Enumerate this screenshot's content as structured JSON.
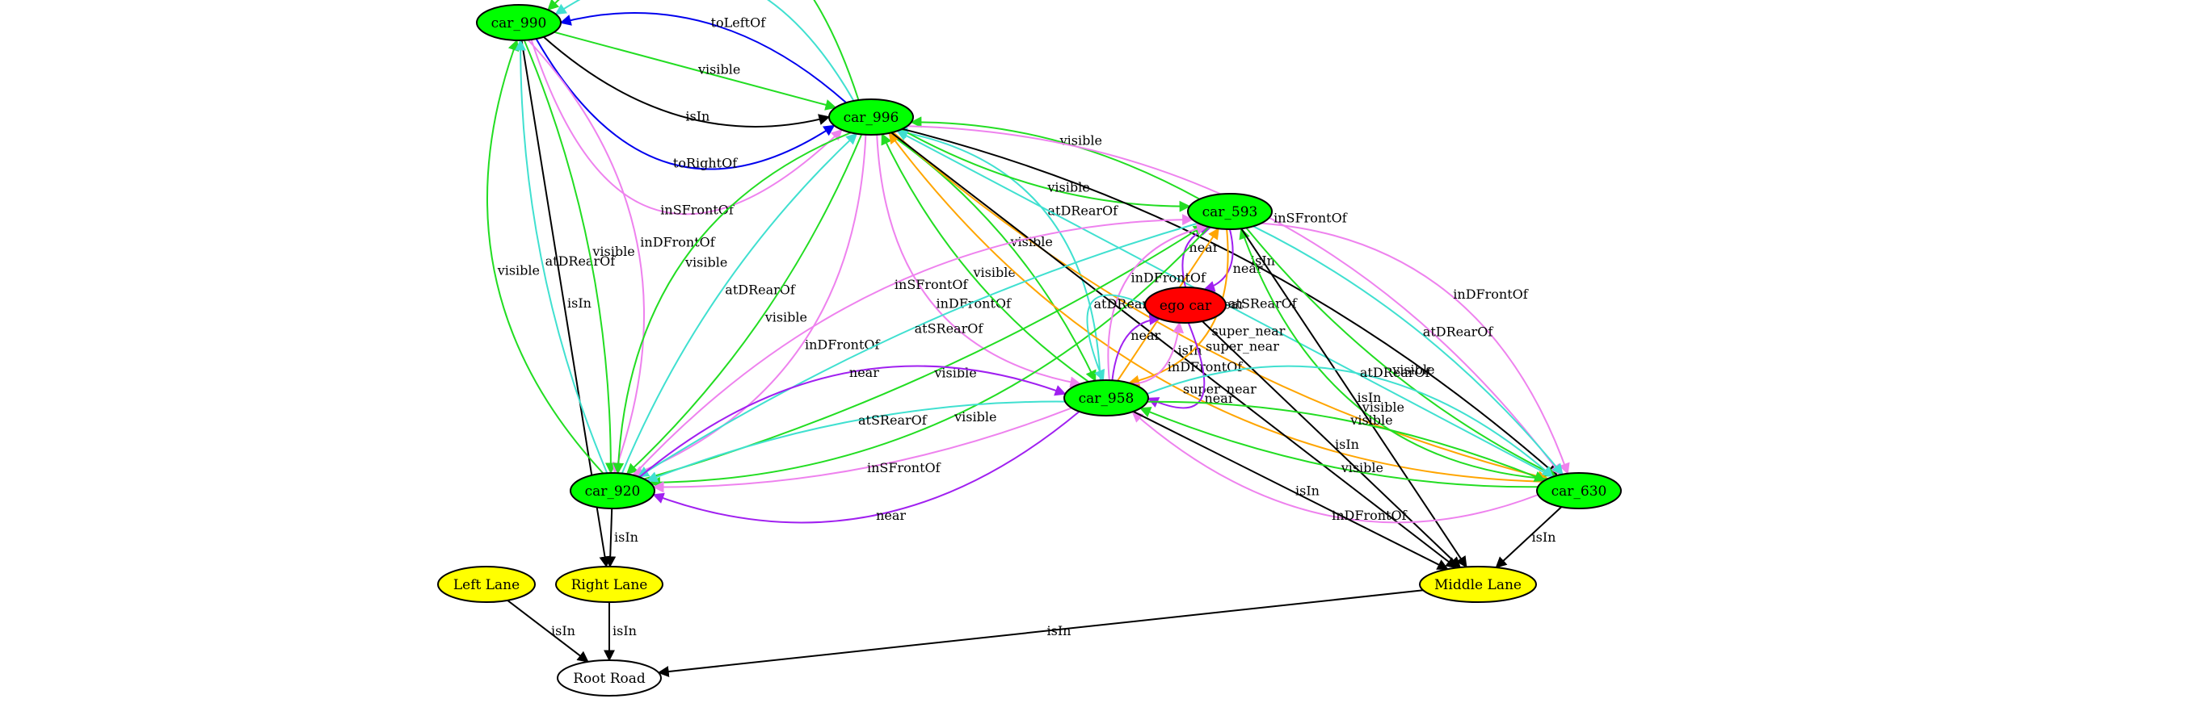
{
  "colors": {
    "vehicle": "#00ff00",
    "ego": "#ff0000",
    "lane": "#ffff00",
    "road": "#ffffff",
    "visible": "#22dd22",
    "atSRearOf": "#40e0d0",
    "atDRearOf": "#40e0d0",
    "toLeftOf": "#0000ee",
    "toRightOf": "#0000ee",
    "inSFrontOf": "#ee82ee",
    "inDFrontOf": "#ee82ee",
    "isIn": "#000000",
    "near": "#a020f0",
    "super_near": "#ffa500"
  },
  "nodes": [
    {
      "id": "car_990",
      "label": "car_990",
      "kind": "vehicle"
    },
    {
      "id": "car_996",
      "label": "car_996",
      "kind": "vehicle"
    },
    {
      "id": "car_593",
      "label": "car_593",
      "kind": "vehicle"
    },
    {
      "id": "ego_car",
      "label": "ego car",
      "kind": "ego"
    },
    {
      "id": "car_958",
      "label": "car_958",
      "kind": "vehicle"
    },
    {
      "id": "car_920",
      "label": "car_920",
      "kind": "vehicle"
    },
    {
      "id": "car_630",
      "label": "car_630",
      "kind": "vehicle"
    },
    {
      "id": "left_lane",
      "label": "Left Lane",
      "kind": "lane"
    },
    {
      "id": "right_lane",
      "label": "Right Lane",
      "kind": "lane"
    },
    {
      "id": "middle_lane",
      "label": "Middle Lane",
      "kind": "lane"
    },
    {
      "id": "root_road",
      "label": "Root Road",
      "kind": "road"
    }
  ],
  "edges": [
    {
      "from": "car_996",
      "to": "car_990",
      "label": "visible",
      "rel": "visible"
    },
    {
      "from": "car_996",
      "to": "car_990",
      "label": "atSRearOf",
      "rel": "atSRearOf"
    },
    {
      "from": "car_996",
      "to": "car_990",
      "label": "toLeftOf",
      "rel": "toLeftOf"
    },
    {
      "from": "car_990",
      "to": "car_996",
      "label": "visible",
      "rel": "visible"
    },
    {
      "from": "car_990",
      "to": "car_996",
      "label": "isIn",
      "rel": "isIn"
    },
    {
      "from": "car_990",
      "to": "car_996",
      "label": "toRightOf",
      "rel": "toRightOf"
    },
    {
      "from": "car_990",
      "to": "car_996",
      "label": "inSFrontOf",
      "rel": "inSFrontOf"
    },
    {
      "from": "car_990",
      "to": "right_lane",
      "label": "isIn",
      "rel": "isIn"
    },
    {
      "from": "car_920",
      "to": "car_990",
      "label": "visible",
      "rel": "visible"
    },
    {
      "from": "car_920",
      "to": "car_990",
      "label": "atDRearOf",
      "rel": "atDRearOf"
    },
    {
      "from": "car_990",
      "to": "car_920",
      "label": "visible",
      "rel": "visible"
    },
    {
      "from": "car_990",
      "to": "car_920",
      "label": "inDFrontOf",
      "rel": "inDFrontOf"
    },
    {
      "from": "car_996",
      "to": "car_920",
      "label": "visible",
      "rel": "visible"
    },
    {
      "from": "car_920",
      "to": "car_996",
      "label": "atDRearOf",
      "rel": "atDRearOf"
    },
    {
      "from": "car_996",
      "to": "car_920",
      "label": "visible",
      "rel": "visible"
    },
    {
      "from": "car_996",
      "to": "car_920",
      "label": "inDFrontOf",
      "rel": "inDFrontOf"
    },
    {
      "from": "car_996",
      "to": "car_958",
      "label": "inDFrontOf",
      "rel": "inDFrontOf"
    },
    {
      "from": "car_958",
      "to": "car_996",
      "label": "visible",
      "rel": "visible"
    },
    {
      "from": "car_996",
      "to": "car_958",
      "label": "visible",
      "rel": "visible"
    },
    {
      "from": "car_958",
      "to": "car_996",
      "label": "atDRearOf",
      "rel": "atDRearOf"
    },
    {
      "from": "car_996",
      "to": "car_593",
      "label": "visible",
      "rel": "visible"
    },
    {
      "from": "car_593",
      "to": "car_996",
      "label": "visible",
      "rel": "visible"
    },
    {
      "from": "car_630",
      "to": "car_996",
      "label": "super_near",
      "rel": "super_near"
    },
    {
      "from": "car_996",
      "to": "car_630",
      "label": "super_near",
      "rel": "super_near"
    },
    {
      "from": "car_630",
      "to": "car_996",
      "label": "atSRearOf",
      "rel": "atSRearOf"
    },
    {
      "from": "car_996",
      "to": "car_630",
      "label": "isIn",
      "rel": "isIn"
    },
    {
      "from": "car_996",
      "to": "car_630",
      "label": "inSFrontOf",
      "rel": "inSFrontOf"
    },
    {
      "from": "car_996",
      "to": "middle_lane",
      "label": "isIn",
      "rel": "isIn"
    },
    {
      "from": "car_593",
      "to": "ego_car",
      "label": "near",
      "rel": "near"
    },
    {
      "from": "ego_car",
      "to": "car_593",
      "label": "near",
      "rel": "near"
    },
    {
      "from": "car_593",
      "to": "car_958",
      "label": "super_near",
      "rel": "super_near"
    },
    {
      "from": "car_958",
      "to": "car_593",
      "label": "super_near",
      "rel": "super_near"
    },
    {
      "from": "car_593",
      "to": "car_920",
      "label": "visible",
      "rel": "visible"
    },
    {
      "from": "car_920",
      "to": "car_593",
      "label": "visible",
      "rel": "visible"
    },
    {
      "from": "car_593",
      "to": "car_920",
      "label": "atSRearOf",
      "rel": "atSRearOf"
    },
    {
      "from": "car_920",
      "to": "car_593",
      "label": "inSFrontOf",
      "rel": "inSFrontOf"
    },
    {
      "from": "car_958",
      "to": "car_593",
      "label": "inDFrontOf",
      "rel": "inDFrontOf"
    },
    {
      "from": "car_593",
      "to": "car_630",
      "label": "inDFrontOf",
      "rel": "inDFrontOf"
    },
    {
      "from": "car_593",
      "to": "car_630",
      "label": "atDRearOf",
      "rel": "atDRearOf"
    },
    {
      "from": "car_593",
      "to": "car_630",
      "label": "visible",
      "rel": "visible"
    },
    {
      "from": "car_630",
      "to": "car_593",
      "label": "visible",
      "rel": "visible"
    },
    {
      "from": "car_593",
      "to": "middle_lane",
      "label": "isIn",
      "rel": "isIn"
    },
    {
      "from": "ego_car",
      "to": "car_958",
      "label": "atDRearOf",
      "rel": "atDRearOf"
    },
    {
      "from": "car_958",
      "to": "ego_car",
      "label": "near",
      "rel": "near"
    },
    {
      "from": "car_958",
      "to": "ego_car",
      "label": "inDFrontOf",
      "rel": "inDFrontOf"
    },
    {
      "from": "ego_car",
      "to": "car_958",
      "label": "near",
      "rel": "near"
    },
    {
      "from": "ego_car",
      "to": "middle_lane",
      "label": "isIn",
      "rel": "isIn"
    },
    {
      "from": "car_920",
      "to": "car_958",
      "label": "near",
      "rel": "near"
    },
    {
      "from": "car_958",
      "to": "car_920",
      "label": "atSRearOf",
      "rel": "atSRearOf"
    },
    {
      "from": "car_958",
      "to": "car_920",
      "label": "inSFrontOf",
      "rel": "inSFrontOf"
    },
    {
      "from": "car_958",
      "to": "car_920",
      "label": "near",
      "rel": "near"
    },
    {
      "from": "car_630",
      "to": "car_958",
      "label": "inDFrontOf",
      "rel": "inDFrontOf"
    },
    {
      "from": "car_630",
      "to": "car_958",
      "label": "visible",
      "rel": "visible"
    },
    {
      "from": "car_958",
      "to": "car_630",
      "label": "visible",
      "rel": "visible"
    },
    {
      "from": "car_958",
      "to": "car_630",
      "label": "atDRearOf",
      "rel": "atDRearOf"
    },
    {
      "from": "car_958",
      "to": "middle_lane",
      "label": "isIn",
      "rel": "isIn"
    },
    {
      "from": "car_920",
      "to": "right_lane",
      "label": "isIn",
      "rel": "isIn"
    },
    {
      "from": "car_630",
      "to": "middle_lane",
      "label": "isIn",
      "rel": "isIn"
    },
    {
      "from": "left_lane",
      "to": "root_road",
      "label": "isIn",
      "rel": "isIn"
    },
    {
      "from": "right_lane",
      "to": "root_road",
      "label": "isIn",
      "rel": "isIn"
    },
    {
      "from": "middle_lane",
      "to": "root_road",
      "label": "isIn",
      "rel": "isIn"
    }
  ]
}
